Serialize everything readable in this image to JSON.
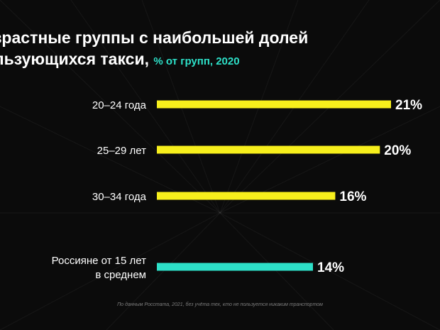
{
  "header": {
    "title_line1": "зрастные группы с наибольшей долей",
    "title_line2": "льзующихся такси,",
    "subtitle": "% от групп, 2020"
  },
  "footer": {
    "source": "По данным Росстата, 2021, без учёта тех, кто не пользуется никаким транспортом"
  },
  "colors": {
    "highlight": "#f7ef1c",
    "average": "#2de0c8",
    "background": "#0b0b0b"
  },
  "chart_data": {
    "type": "bar",
    "orientation": "horizontal",
    "title": "зрастные группы с наибольшей долей льзующихся такси,",
    "subtitle": "% от групп, 2020",
    "categories": [
      [
        "20–24 года"
      ],
      [
        "25–29 лет"
      ],
      [
        "30–34 года"
      ],
      [
        "Россияне от 15 лет",
        "в среднем"
      ]
    ],
    "values": [
      21,
      20,
      16,
      14
    ],
    "value_labels": [
      "21%",
      "20%",
      "16%",
      "14%"
    ],
    "bar_colors": [
      "#f7ef1c",
      "#f7ef1c",
      "#f7ef1c",
      "#2de0c8"
    ],
    "xlim": [
      0,
      21
    ],
    "grid": false,
    "legend": "none"
  }
}
